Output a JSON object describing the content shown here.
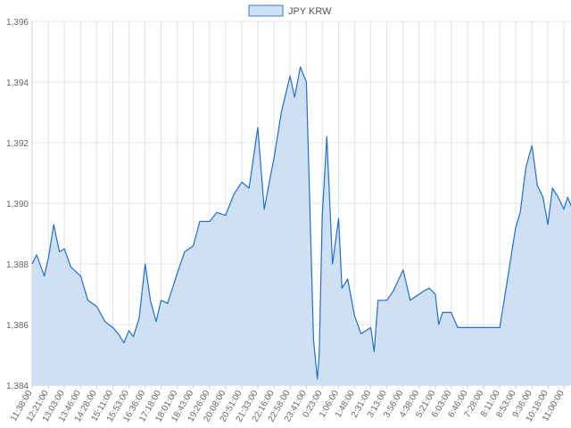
{
  "chart_data": {
    "type": "area",
    "title": "",
    "xlabel": "",
    "ylabel": "",
    "grid": true,
    "legend": {
      "position": "top-center",
      "entries": [
        "JPY KRW"
      ]
    },
    "ylim": [
      1384,
      1396
    ],
    "y_ticks": [
      "1,384",
      "1,386",
      "1,388",
      "1,390",
      "1,392",
      "1,394",
      "1,396"
    ],
    "x_ticks": [
      "11:38:00",
      "12:21:00",
      "13:03:00",
      "13:46:00",
      "14:28:00",
      "15:11:00",
      "15:53:00",
      "16:36:00",
      "17:18:00",
      "18:01:00",
      "18:43:00",
      "19:26:00",
      "20:08:00",
      "20:51:00",
      "21:33:00",
      "22:16:00",
      "22:58:00",
      "23:41:00",
      "0:23:00",
      "1:06:00",
      "1:48:00",
      "2:31:00",
      "3:13:00",
      "3:56:00",
      "4:38:00",
      "5:21:00",
      "6:03:00",
      "6:46:00",
      "7:28:00",
      "8:11:00",
      "8:53:00",
      "9:36:00",
      "10:18:00",
      "11:00:00"
    ],
    "colors": {
      "line": "#1f6fcf",
      "fill": "#cfe0f3"
    },
    "series": [
      {
        "name": "JPY KRW",
        "x": [
          "11:38:00",
          "11:50:00",
          "12:10:00",
          "12:21:00",
          "12:35:00",
          "12:50:00",
          "13:03:00",
          "13:20:00",
          "13:46:00",
          "14:05:00",
          "14:28:00",
          "14:50:00",
          "15:11:00",
          "15:25:00",
          "15:40:00",
          "15:53:00",
          "16:05:00",
          "16:20:00",
          "16:36:00",
          "16:50:00",
          "17:05:00",
          "17:18:00",
          "17:35:00",
          "18:01:00",
          "18:20:00",
          "18:43:00",
          "19:00:00",
          "19:26:00",
          "19:45:00",
          "20:08:00",
          "20:30:00",
          "20:51:00",
          "21:10:00",
          "21:33:00",
          "21:50:00",
          "22:05:00",
          "22:16:00",
          "22:35:00",
          "22:58:00",
          "23:10:00",
          "23:25:00",
          "23:41:00",
          "23:50:00",
          "0:00:00",
          "0:10:00",
          "0:15:00",
          "0:23:00",
          "0:35:00",
          "0:50:00",
          "1:06:00",
          "1:15:00",
          "1:30:00",
          "1:48:00",
          "2:05:00",
          "2:31:00",
          "2:40:00",
          "2:50:00",
          "3:13:00",
          "3:30:00",
          "3:56:00",
          "4:15:00",
          "4:38:00",
          "4:50:00",
          "5:05:00",
          "5:21:00",
          "5:30:00",
          "5:40:00",
          "6:03:00",
          "6:20:00",
          "6:46:00",
          "7:00:00",
          "7:28:00",
          "8:11:00",
          "8:53:00",
          "9:05:00",
          "9:20:00",
          "9:36:00",
          "9:50:00",
          "10:05:00",
          "10:18:00",
          "10:30:00",
          "10:45:00",
          "11:00:00",
          "11:10:00",
          "11:20:00"
        ],
        "values": [
          1388.0,
          1388.3,
          1387.6,
          1388.2,
          1389.3,
          1388.4,
          1388.5,
          1387.9,
          1387.6,
          1386.8,
          1386.6,
          1386.1,
          1385.9,
          1385.7,
          1385.4,
          1385.8,
          1385.6,
          1386.2,
          1388.0,
          1386.8,
          1386.1,
          1386.8,
          1386.7,
          1387.7,
          1388.4,
          1388.6,
          1389.4,
          1389.4,
          1389.7,
          1389.6,
          1390.3,
          1390.7,
          1390.5,
          1392.5,
          1389.8,
          1390.8,
          1391.5,
          1393.0,
          1394.2,
          1393.5,
          1394.5,
          1394.0,
          1390.0,
          1385.5,
          1384.2,
          1385.0,
          1389.6,
          1392.2,
          1388.0,
          1389.5,
          1387.2,
          1387.5,
          1386.3,
          1385.7,
          1385.9,
          1385.1,
          1386.8,
          1386.8,
          1387.1,
          1387.8,
          1386.8,
          1387.0,
          1387.1,
          1387.2,
          1387.0,
          1386.0,
          1386.4,
          1386.4,
          1385.9,
          1385.9,
          1385.9,
          1385.9,
          1385.9,
          1389.2,
          1389.7,
          1391.2,
          1391.9,
          1390.6,
          1390.2,
          1389.3,
          1390.5,
          1390.2,
          1389.8,
          1390.2,
          1389.9
        ]
      }
    ]
  }
}
